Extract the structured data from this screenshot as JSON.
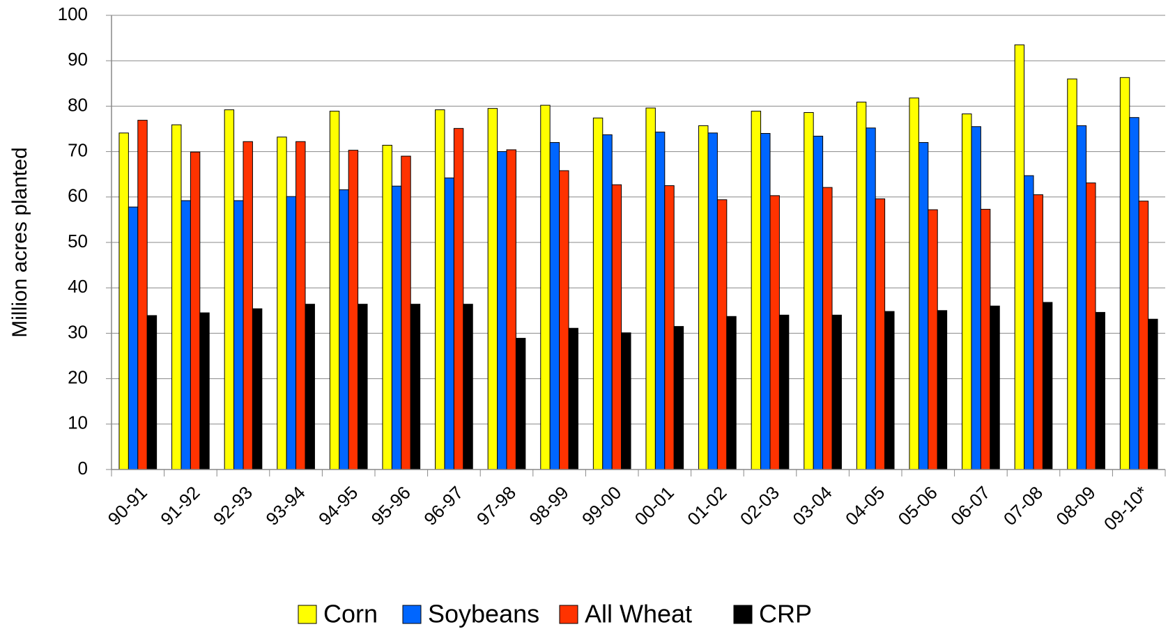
{
  "chart_data": {
    "type": "bar",
    "y_label": "Million acres planted",
    "categories": [
      "90-91",
      "91-92",
      "92-93",
      "93-94",
      "94-95",
      "95-96",
      "96-97",
      "97-98",
      "98-99",
      "99-00",
      "00-01",
      "01-02",
      "02-03",
      "03-04",
      "04-05",
      "05-06",
      "06-07",
      "07-08",
      "08-09",
      "09-10*"
    ],
    "series": [
      {
        "name": "Corn",
        "color": "#ffff00",
        "values": [
          74.1,
          75.9,
          79.2,
          73.2,
          78.9,
          71.4,
          79.2,
          79.5,
          80.2,
          77.4,
          79.6,
          75.7,
          78.9,
          78.6,
          80.9,
          81.8,
          78.3,
          93.5,
          86.0,
          86.3
        ]
      },
      {
        "name": "Soybeans",
        "color": "#0066ff",
        "values": [
          57.8,
          59.2,
          59.2,
          60.1,
          61.6,
          62.4,
          64.2,
          70.0,
          72.0,
          73.7,
          74.3,
          74.1,
          74.0,
          73.4,
          75.2,
          72.0,
          75.5,
          64.7,
          75.7,
          77.5
        ]
      },
      {
        "name": "All Wheat",
        "color": "#ff3300",
        "values": [
          76.9,
          69.9,
          72.2,
          72.2,
          70.3,
          69.0,
          75.1,
          70.4,
          65.8,
          62.7,
          62.5,
          59.4,
          60.3,
          62.1,
          59.6,
          57.2,
          57.3,
          60.5,
          63.1,
          59.1
        ]
      },
      {
        "name": "CRP",
        "color": "#000000",
        "values": [
          33.9,
          34.5,
          35.4,
          36.4,
          36.4,
          36.4,
          36.4,
          28.9,
          31.1,
          30.1,
          31.5,
          33.7,
          34.0,
          34.0,
          34.8,
          35.0,
          36.0,
          36.8,
          34.6,
          33.1
        ]
      }
    ],
    "ylim": [
      0,
      100
    ],
    "yticks": [
      0,
      10,
      20,
      30,
      40,
      50,
      60,
      70,
      80,
      90,
      100
    ],
    "grid": true,
    "legend": "bottom"
  }
}
